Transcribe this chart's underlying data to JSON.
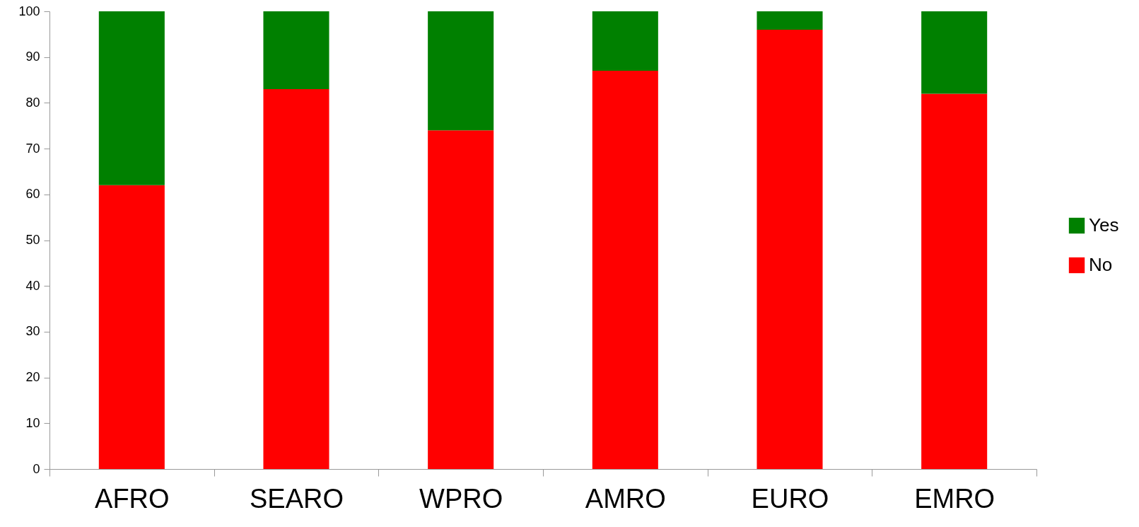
{
  "chart_data": {
    "type": "bar",
    "stacked": true,
    "categories": [
      "AFRO",
      "SEARO",
      "WPRO",
      "AMRO",
      "EURO",
      "EMRO"
    ],
    "series": [
      {
        "name": "No",
        "color": "#ff0000",
        "values": [
          62,
          83,
          74,
          87,
          96,
          82
        ]
      },
      {
        "name": "Yes",
        "color": "#008000",
        "values": [
          38,
          17,
          26,
          13,
          4,
          18
        ]
      }
    ],
    "ylim": [
      0,
      100
    ],
    "yticks": [
      0,
      10,
      20,
      30,
      40,
      50,
      60,
      70,
      80,
      90,
      100
    ],
    "grid": false,
    "legend": "right"
  }
}
